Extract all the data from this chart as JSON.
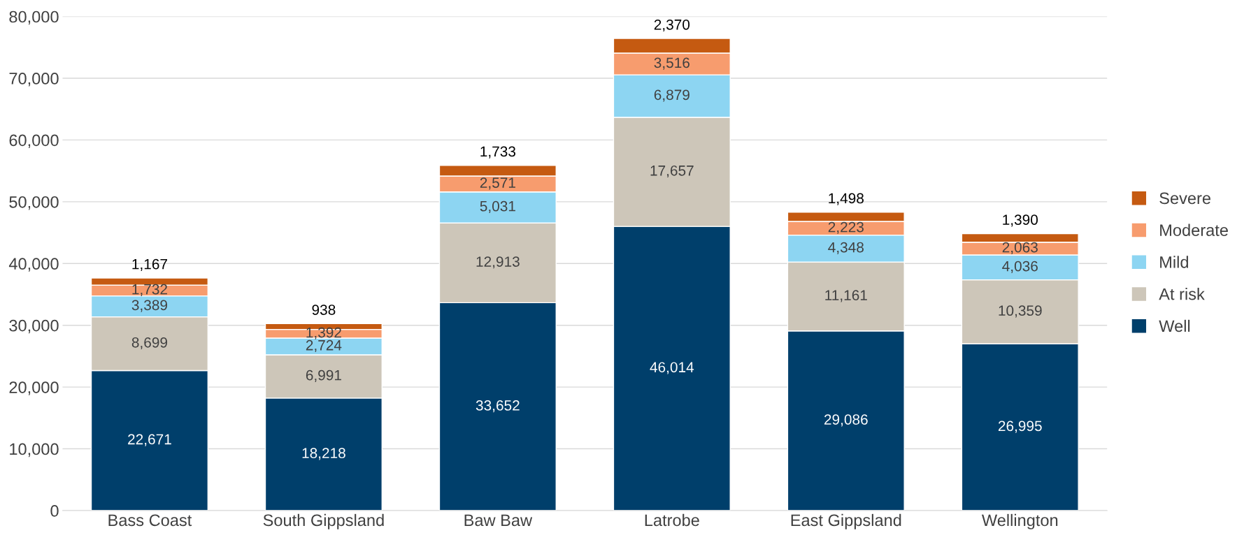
{
  "chart_data": {
    "type": "bar",
    "stacked": true,
    "categories": [
      "Bass Coast",
      "South Gippsland",
      "Baw Baw",
      "Latrobe",
      "East Gippsland",
      "Wellington"
    ],
    "series": [
      {
        "name": "Well",
        "color": "#003f6b",
        "values": [
          22671,
          18218,
          33652,
          46014,
          29086,
          26995
        ],
        "value_labels": [
          "22,671",
          "18,218",
          "33,652",
          "46,014",
          "29,086",
          "26,995"
        ]
      },
      {
        "name": "At risk",
        "color": "#cdc6b9",
        "values": [
          8699,
          6991,
          12913,
          17657,
          11161,
          10359
        ],
        "value_labels": [
          "8,699",
          "6,991",
          "12,913",
          "17,657",
          "11,161",
          "10,359"
        ]
      },
      {
        "name": "Mild",
        "color": "#8dd5f2",
        "values": [
          3389,
          2724,
          5031,
          6879,
          4348,
          4036
        ],
        "value_labels": [
          "3,389",
          "2,724",
          "5,031",
          "6,879",
          "4,348",
          "4,036"
        ]
      },
      {
        "name": "Moderate",
        "color": "#f79c6e",
        "values": [
          1732,
          1392,
          2571,
          3516,
          2223,
          2063
        ],
        "value_labels": [
          "1,732",
          "1,392",
          "2,571",
          "3,516",
          "2,223",
          "2,063"
        ]
      },
      {
        "name": "Severe",
        "color": "#c55a11",
        "values": [
          1167,
          938,
          1733,
          2370,
          1498,
          1390
        ],
        "value_labels": [
          "1,167",
          "938",
          "1,733",
          "2,370",
          "1,498",
          "1,390"
        ]
      }
    ],
    "ylim": [
      0,
      80000
    ],
    "yticks": [
      {
        "value": 0,
        "label": "0"
      },
      {
        "value": 10000,
        "label": "10,000"
      },
      {
        "value": 20000,
        "label": "20,000"
      },
      {
        "value": 30000,
        "label": "30,000"
      },
      {
        "value": 40000,
        "label": "40,000"
      },
      {
        "value": 50000,
        "label": "50,000"
      },
      {
        "value": 60000,
        "label": "60,000"
      },
      {
        "value": 70000,
        "label": "70,000"
      },
      {
        "value": 80000,
        "label": "80,000"
      }
    ],
    "grid": "y",
    "legend": "right"
  }
}
